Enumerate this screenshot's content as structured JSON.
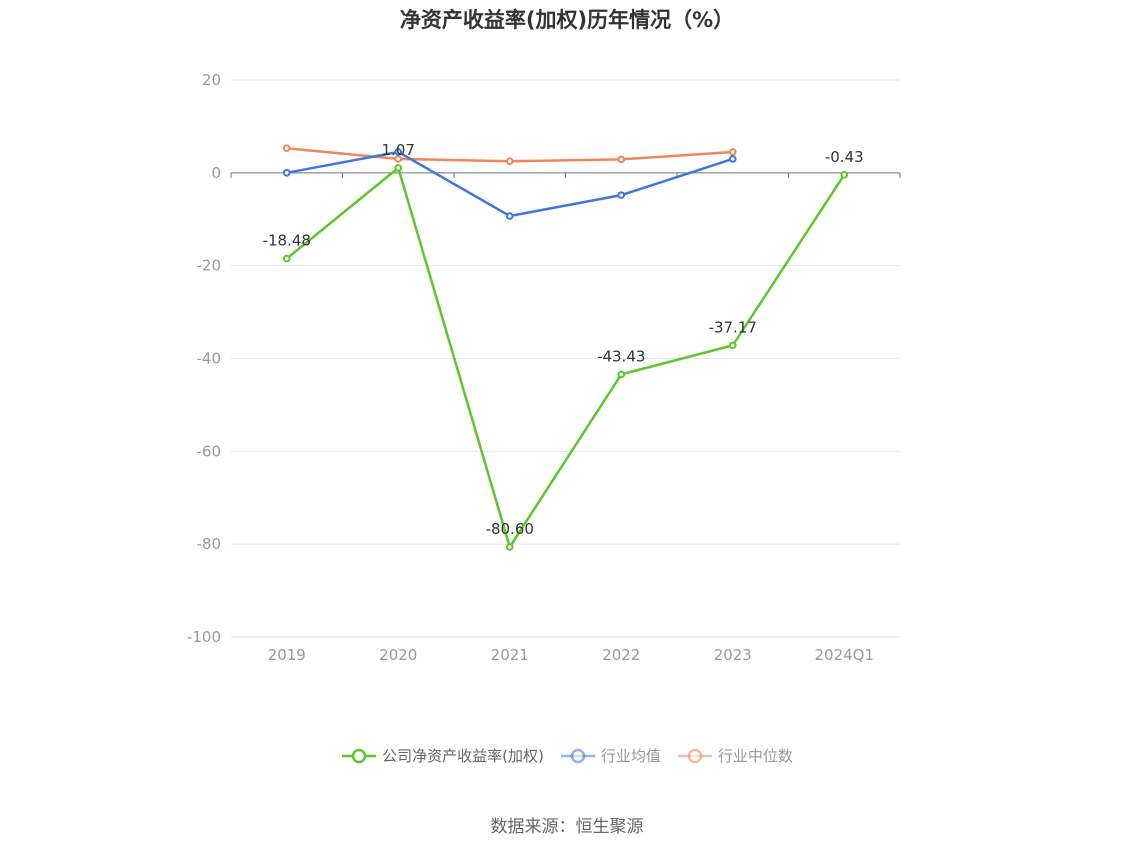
{
  "title": "净资产收益率(加权)历年情况（%）",
  "source": "数据来源：恒生聚源",
  "chart_data": {
    "type": "line",
    "title": "净资产收益率(加权)历年情况（%）",
    "categories": [
      "2019",
      "2020",
      "2021",
      "2022",
      "2023",
      "2024Q1"
    ],
    "ylim": [
      -100,
      20
    ],
    "yticks": [
      20,
      0,
      -20,
      -40,
      -60,
      -80,
      -100
    ],
    "grid": true,
    "legend_position": "bottom-center",
    "series": [
      {
        "name": "公司净资产收益率(加权)",
        "color": "#5cc62a",
        "values": [
          -18.48,
          1.07,
          -80.6,
          -43.43,
          -37.17,
          -0.43
        ],
        "labels": [
          "-18.48",
          "1.07",
          "-80.60",
          "-43.43",
          "-37.17",
          "-0.43"
        ]
      },
      {
        "name": "行业均值",
        "color": "#3d76dd",
        "values": [
          0.0,
          4.5,
          -9.3,
          -4.8,
          3.0,
          null
        ]
      },
      {
        "name": "行业中位数",
        "color": "#f1865a",
        "values": [
          5.3,
          3.0,
          2.5,
          2.9,
          4.5,
          null
        ]
      }
    ]
  }
}
